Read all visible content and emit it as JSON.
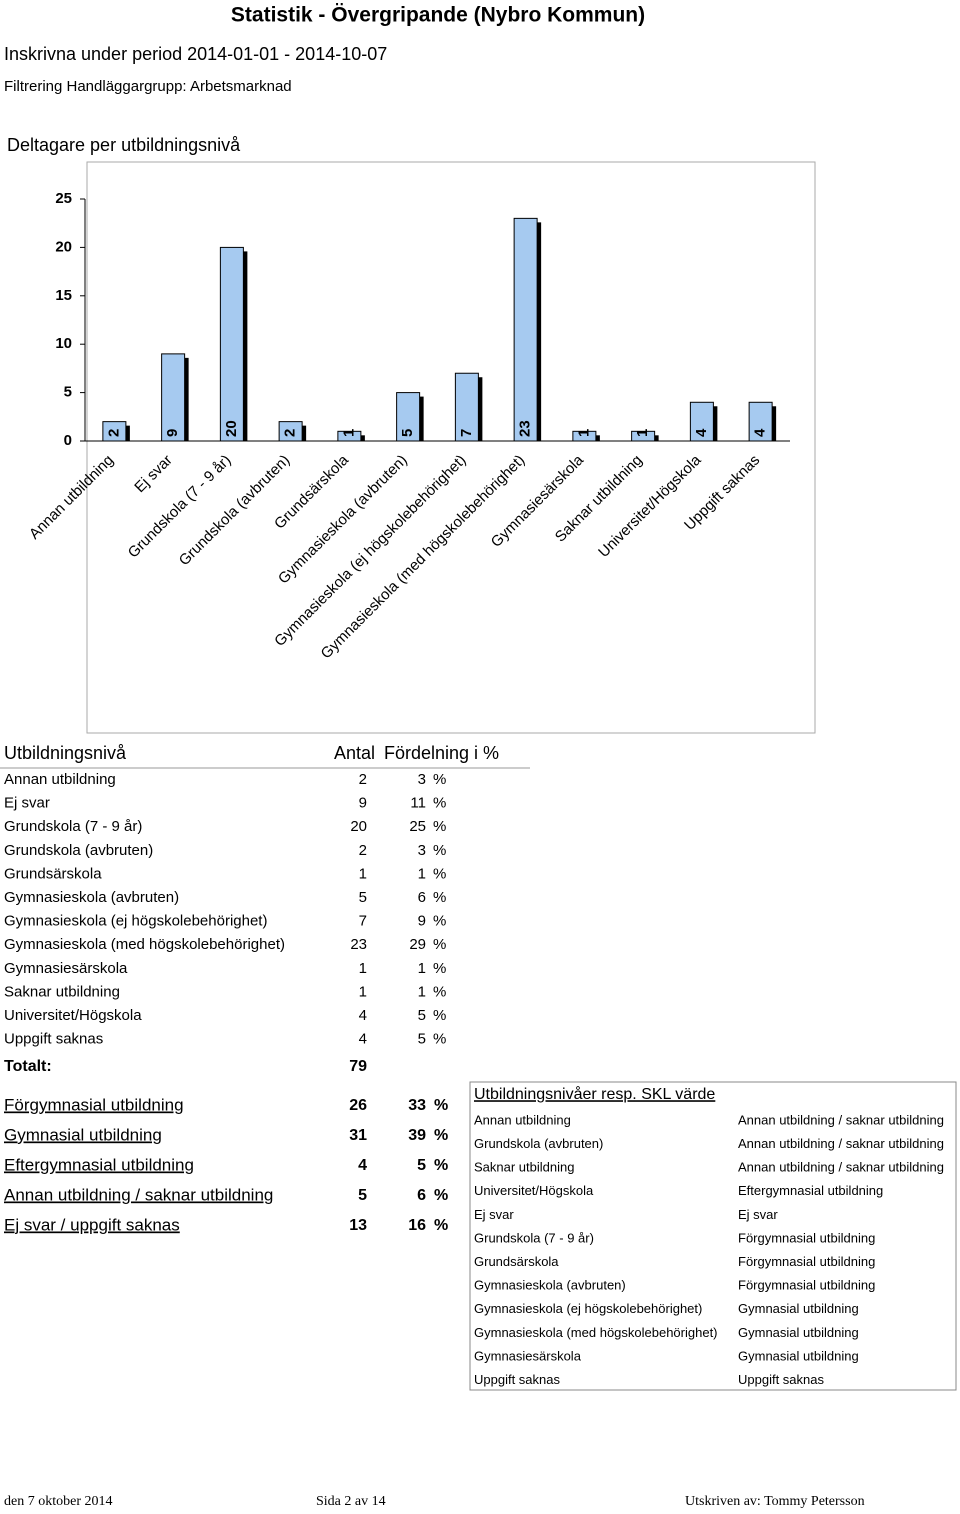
{
  "header": {
    "title": "Statistik - Övergripande  (Nybro Kommun)",
    "period": "Inskrivna under period 2014-01-01 - 2014-10-07",
    "filter": "Filtrering Handläggargrupp: Arbetsmarknad"
  },
  "chart_data": {
    "type": "bar",
    "title": "Deltagare per utbildningsnivå",
    "categories": [
      "Annan utbildning",
      "Ej svar",
      "Grundskola (7 - 9 år)",
      "Grundskola (avbruten)",
      "Grundsärskola",
      "Gymnasieskola (avbruten)",
      "Gymnasieskola (ej högskolebehörighet)",
      "Gymnasieskola (med högskolebehörighet)",
      "Gymnasiesärskola",
      "Saknar utbildning",
      "Universitet/Högskola",
      "Uppgift saknas"
    ],
    "values": [
      2,
      9,
      20,
      2,
      1,
      5,
      7,
      23,
      1,
      1,
      4,
      4
    ],
    "color": "#a6caf0",
    "ylim": [
      0,
      25
    ],
    "yticks": [
      0,
      5,
      10,
      15,
      20,
      25
    ]
  },
  "table": {
    "header": [
      "Utbildningsnivå",
      "Antal",
      "Fördelning i %"
    ],
    "unit": "%",
    "rows": [
      [
        "Annan utbildning",
        2,
        3
      ],
      [
        "Ej svar",
        9,
        11
      ],
      [
        "Grundskola (7 - 9 år)",
        20,
        25
      ],
      [
        "Grundskola (avbruten)",
        2,
        3
      ],
      [
        "Grundsärskola",
        1,
        1
      ],
      [
        "Gymnasieskola (avbruten)",
        5,
        6
      ],
      [
        "Gymnasieskola (ej högskolebehörighet)",
        7,
        9
      ],
      [
        "Gymnasieskola (med högskolebehörighet)",
        23,
        29
      ],
      [
        "Gymnasiesärskola",
        1,
        1
      ],
      [
        "Saknar utbildning",
        1,
        1
      ],
      [
        "Universitet/Högskola",
        4,
        5
      ],
      [
        "Uppgift saknas",
        4,
        5
      ]
    ],
    "total_label": "Totalt:",
    "total": 79
  },
  "groups": [
    [
      "Förgymnasial utbildning",
      26,
      33
    ],
    [
      "Gymnasial utbildning",
      31,
      39
    ],
    [
      "Eftergymnasial utbildning",
      4,
      5
    ],
    [
      "Annan utbildning / saknar utbildning",
      5,
      6
    ],
    [
      "Ej svar / uppgift saknas",
      13,
      16
    ]
  ],
  "skl": {
    "title": "Utbildningsnivåer resp. SKL värde",
    "rows": [
      [
        "Annan utbildning",
        "Annan utbildning / saknar utbildning"
      ],
      [
        "Grundskola (avbruten)",
        "Annan utbildning / saknar utbildning"
      ],
      [
        "Saknar utbildning",
        "Annan utbildning / saknar utbildning"
      ],
      [
        "Universitet/Högskola",
        "Eftergymnasial utbildning"
      ],
      [
        "Ej svar",
        "Ej svar"
      ],
      [
        "Grundskola (7 - 9 år)",
        "Förgymnasial utbildning"
      ],
      [
        "Grundsärskola",
        "Förgymnasial utbildning"
      ],
      [
        "Gymnasieskola (avbruten)",
        "Förgymnasial utbildning"
      ],
      [
        "Gymnasieskola (ej högskolebehörighet)",
        "Gymnasial utbildning"
      ],
      [
        "Gymnasieskola (med högskolebehörighet)",
        "Gymnasial utbildning"
      ],
      [
        "Gymnasiesärskola",
        "Gymnasial utbildning"
      ],
      [
        "Uppgift saknas",
        "Uppgift saknas"
      ]
    ]
  },
  "footer": {
    "date": "den 7 oktober 2014",
    "page": "Sida 2 av 14",
    "printed": "Utskriven av: Tommy Petersson"
  }
}
